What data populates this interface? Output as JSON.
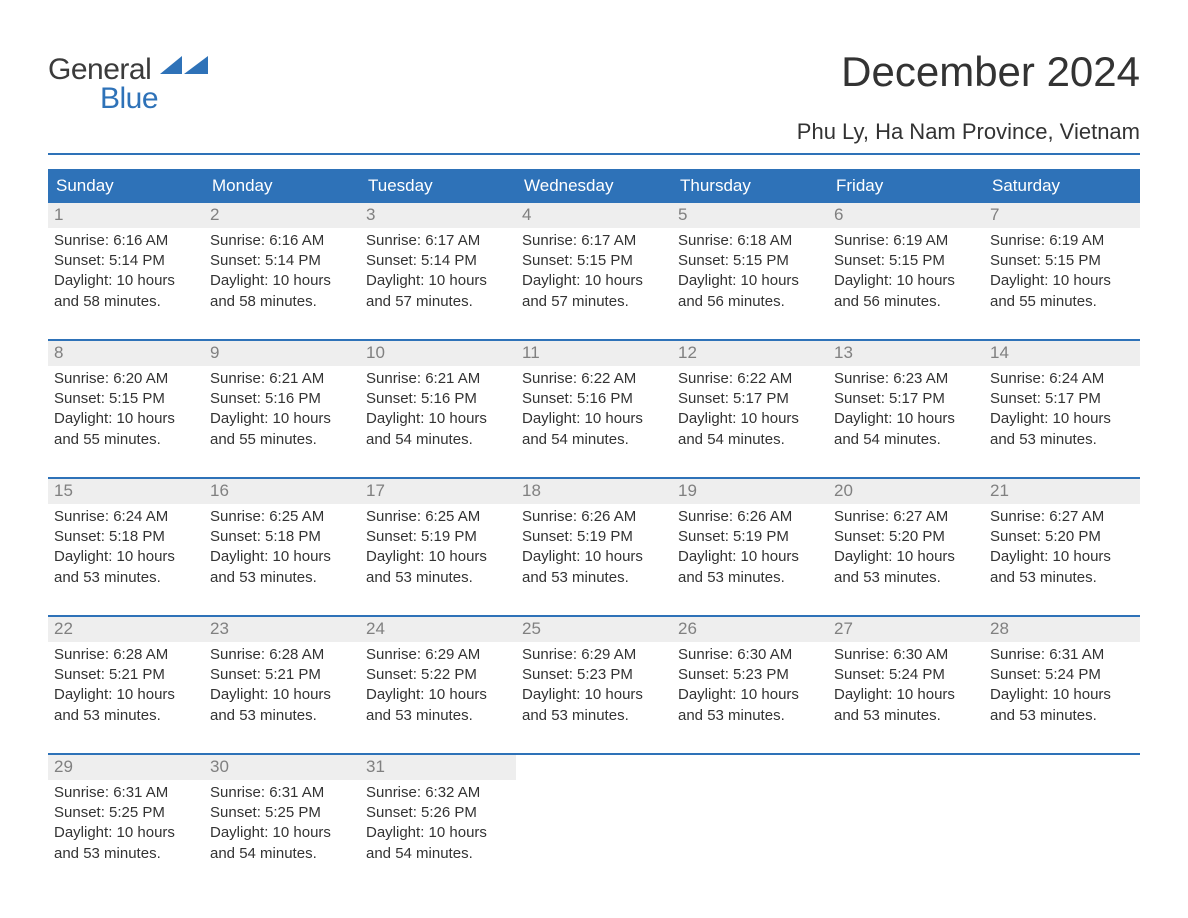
{
  "logo": {
    "text1": "General",
    "text2": "Blue",
    "flag_color": "#2e72b8"
  },
  "title": "December 2024",
  "location": "Phu Ly, Ha Nam Province, Vietnam",
  "colors": {
    "header_bg": "#2e72b8",
    "header_text": "#ffffff",
    "daynum_bg": "#eeeeee",
    "daynum_text": "#808080",
    "body_text": "#333333",
    "rule": "#2e72b8"
  },
  "weekdays": [
    "Sunday",
    "Monday",
    "Tuesday",
    "Wednesday",
    "Thursday",
    "Friday",
    "Saturday"
  ],
  "weeks": [
    [
      {
        "n": "1",
        "sunrise": "Sunrise: 6:16 AM",
        "sunset": "Sunset: 5:14 PM",
        "dl1": "Daylight: 10 hours",
        "dl2": "and 58 minutes."
      },
      {
        "n": "2",
        "sunrise": "Sunrise: 6:16 AM",
        "sunset": "Sunset: 5:14 PM",
        "dl1": "Daylight: 10 hours",
        "dl2": "and 58 minutes."
      },
      {
        "n": "3",
        "sunrise": "Sunrise: 6:17 AM",
        "sunset": "Sunset: 5:14 PM",
        "dl1": "Daylight: 10 hours",
        "dl2": "and 57 minutes."
      },
      {
        "n": "4",
        "sunrise": "Sunrise: 6:17 AM",
        "sunset": "Sunset: 5:15 PM",
        "dl1": "Daylight: 10 hours",
        "dl2": "and 57 minutes."
      },
      {
        "n": "5",
        "sunrise": "Sunrise: 6:18 AM",
        "sunset": "Sunset: 5:15 PM",
        "dl1": "Daylight: 10 hours",
        "dl2": "and 56 minutes."
      },
      {
        "n": "6",
        "sunrise": "Sunrise: 6:19 AM",
        "sunset": "Sunset: 5:15 PM",
        "dl1": "Daylight: 10 hours",
        "dl2": "and 56 minutes."
      },
      {
        "n": "7",
        "sunrise": "Sunrise: 6:19 AM",
        "sunset": "Sunset: 5:15 PM",
        "dl1": "Daylight: 10 hours",
        "dl2": "and 55 minutes."
      }
    ],
    [
      {
        "n": "8",
        "sunrise": "Sunrise: 6:20 AM",
        "sunset": "Sunset: 5:15 PM",
        "dl1": "Daylight: 10 hours",
        "dl2": "and 55 minutes."
      },
      {
        "n": "9",
        "sunrise": "Sunrise: 6:21 AM",
        "sunset": "Sunset: 5:16 PM",
        "dl1": "Daylight: 10 hours",
        "dl2": "and 55 minutes."
      },
      {
        "n": "10",
        "sunrise": "Sunrise: 6:21 AM",
        "sunset": "Sunset: 5:16 PM",
        "dl1": "Daylight: 10 hours",
        "dl2": "and 54 minutes."
      },
      {
        "n": "11",
        "sunrise": "Sunrise: 6:22 AM",
        "sunset": "Sunset: 5:16 PM",
        "dl1": "Daylight: 10 hours",
        "dl2": "and 54 minutes."
      },
      {
        "n": "12",
        "sunrise": "Sunrise: 6:22 AM",
        "sunset": "Sunset: 5:17 PM",
        "dl1": "Daylight: 10 hours",
        "dl2": "and 54 minutes."
      },
      {
        "n": "13",
        "sunrise": "Sunrise: 6:23 AM",
        "sunset": "Sunset: 5:17 PM",
        "dl1": "Daylight: 10 hours",
        "dl2": "and 54 minutes."
      },
      {
        "n": "14",
        "sunrise": "Sunrise: 6:24 AM",
        "sunset": "Sunset: 5:17 PM",
        "dl1": "Daylight: 10 hours",
        "dl2": "and 53 minutes."
      }
    ],
    [
      {
        "n": "15",
        "sunrise": "Sunrise: 6:24 AM",
        "sunset": "Sunset: 5:18 PM",
        "dl1": "Daylight: 10 hours",
        "dl2": "and 53 minutes."
      },
      {
        "n": "16",
        "sunrise": "Sunrise: 6:25 AM",
        "sunset": "Sunset: 5:18 PM",
        "dl1": "Daylight: 10 hours",
        "dl2": "and 53 minutes."
      },
      {
        "n": "17",
        "sunrise": "Sunrise: 6:25 AM",
        "sunset": "Sunset: 5:19 PM",
        "dl1": "Daylight: 10 hours",
        "dl2": "and 53 minutes."
      },
      {
        "n": "18",
        "sunrise": "Sunrise: 6:26 AM",
        "sunset": "Sunset: 5:19 PM",
        "dl1": "Daylight: 10 hours",
        "dl2": "and 53 minutes."
      },
      {
        "n": "19",
        "sunrise": "Sunrise: 6:26 AM",
        "sunset": "Sunset: 5:19 PM",
        "dl1": "Daylight: 10 hours",
        "dl2": "and 53 minutes."
      },
      {
        "n": "20",
        "sunrise": "Sunrise: 6:27 AM",
        "sunset": "Sunset: 5:20 PM",
        "dl1": "Daylight: 10 hours",
        "dl2": "and 53 minutes."
      },
      {
        "n": "21",
        "sunrise": "Sunrise: 6:27 AM",
        "sunset": "Sunset: 5:20 PM",
        "dl1": "Daylight: 10 hours",
        "dl2": "and 53 minutes."
      }
    ],
    [
      {
        "n": "22",
        "sunrise": "Sunrise: 6:28 AM",
        "sunset": "Sunset: 5:21 PM",
        "dl1": "Daylight: 10 hours",
        "dl2": "and 53 minutes."
      },
      {
        "n": "23",
        "sunrise": "Sunrise: 6:28 AM",
        "sunset": "Sunset: 5:21 PM",
        "dl1": "Daylight: 10 hours",
        "dl2": "and 53 minutes."
      },
      {
        "n": "24",
        "sunrise": "Sunrise: 6:29 AM",
        "sunset": "Sunset: 5:22 PM",
        "dl1": "Daylight: 10 hours",
        "dl2": "and 53 minutes."
      },
      {
        "n": "25",
        "sunrise": "Sunrise: 6:29 AM",
        "sunset": "Sunset: 5:23 PM",
        "dl1": "Daylight: 10 hours",
        "dl2": "and 53 minutes."
      },
      {
        "n": "26",
        "sunrise": "Sunrise: 6:30 AM",
        "sunset": "Sunset: 5:23 PM",
        "dl1": "Daylight: 10 hours",
        "dl2": "and 53 minutes."
      },
      {
        "n": "27",
        "sunrise": "Sunrise: 6:30 AM",
        "sunset": "Sunset: 5:24 PM",
        "dl1": "Daylight: 10 hours",
        "dl2": "and 53 minutes."
      },
      {
        "n": "28",
        "sunrise": "Sunrise: 6:31 AM",
        "sunset": "Sunset: 5:24 PM",
        "dl1": "Daylight: 10 hours",
        "dl2": "and 53 minutes."
      }
    ],
    [
      {
        "n": "29",
        "sunrise": "Sunrise: 6:31 AM",
        "sunset": "Sunset: 5:25 PM",
        "dl1": "Daylight: 10 hours",
        "dl2": "and 53 minutes."
      },
      {
        "n": "30",
        "sunrise": "Sunrise: 6:31 AM",
        "sunset": "Sunset: 5:25 PM",
        "dl1": "Daylight: 10 hours",
        "dl2": "and 54 minutes."
      },
      {
        "n": "31",
        "sunrise": "Sunrise: 6:32 AM",
        "sunset": "Sunset: 5:26 PM",
        "dl1": "Daylight: 10 hours",
        "dl2": "and 54 minutes."
      },
      {
        "empty": true
      },
      {
        "empty": true
      },
      {
        "empty": true
      },
      {
        "empty": true
      }
    ]
  ]
}
